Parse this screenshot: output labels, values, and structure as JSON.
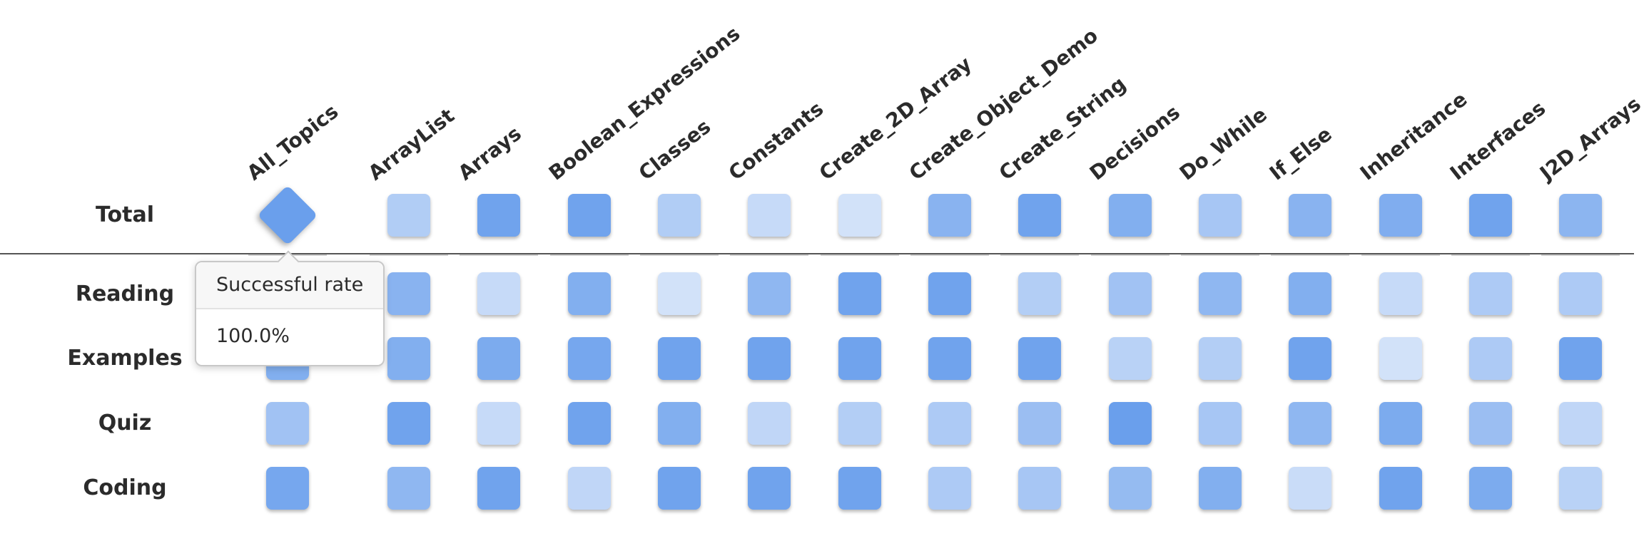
{
  "topics": [
    "All_Topics",
    "ArrayList",
    "Arrays",
    "Boolean_Expressions",
    "Classes",
    "Constants",
    "Create_2D_Array",
    "Create_Object_Demo",
    "Create_String",
    "Decisions",
    "Do_While",
    "If_Else",
    "Inheritance",
    "Interfaces",
    "J2D_Arrays"
  ],
  "rows": [
    {
      "label": "Total",
      "values": [
        1.0,
        0.42,
        0.95,
        0.95,
        0.42,
        0.25,
        0.15,
        0.75,
        0.95,
        0.8,
        0.5,
        0.75,
        0.82,
        0.95,
        0.72
      ]
    },
    {
      "label": "Reading",
      "values": [
        0.8,
        0.75,
        0.25,
        0.8,
        0.15,
        0.7,
        0.95,
        0.95,
        0.4,
        0.55,
        0.7,
        0.8,
        0.25,
        0.45,
        0.45
      ]
    },
    {
      "label": "Examples",
      "values": [
        0.8,
        0.8,
        0.85,
        0.9,
        0.95,
        0.95,
        0.95,
        0.95,
        0.95,
        0.35,
        0.4,
        0.95,
        0.15,
        0.45,
        0.95
      ]
    },
    {
      "label": "Quiz",
      "values": [
        0.55,
        0.95,
        0.25,
        0.95,
        0.8,
        0.3,
        0.4,
        0.45,
        0.6,
        1.0,
        0.5,
        0.7,
        0.85,
        0.6,
        0.3
      ]
    },
    {
      "label": "Coding",
      "values": [
        0.9,
        0.7,
        0.95,
        0.3,
        0.95,
        0.95,
        0.95,
        0.45,
        0.5,
        0.65,
        0.8,
        0.22,
        0.95,
        0.85,
        0.35
      ]
    }
  ],
  "colors": {
    "cell_base": "#6a9fec",
    "cell_min_alpha": 0.18,
    "separator": "#555555",
    "text": "#2b2b2b"
  },
  "active_cell": {
    "row": 0,
    "col": 0
  },
  "tooltip": {
    "title": "Successful rate",
    "value": "100.0%"
  }
}
